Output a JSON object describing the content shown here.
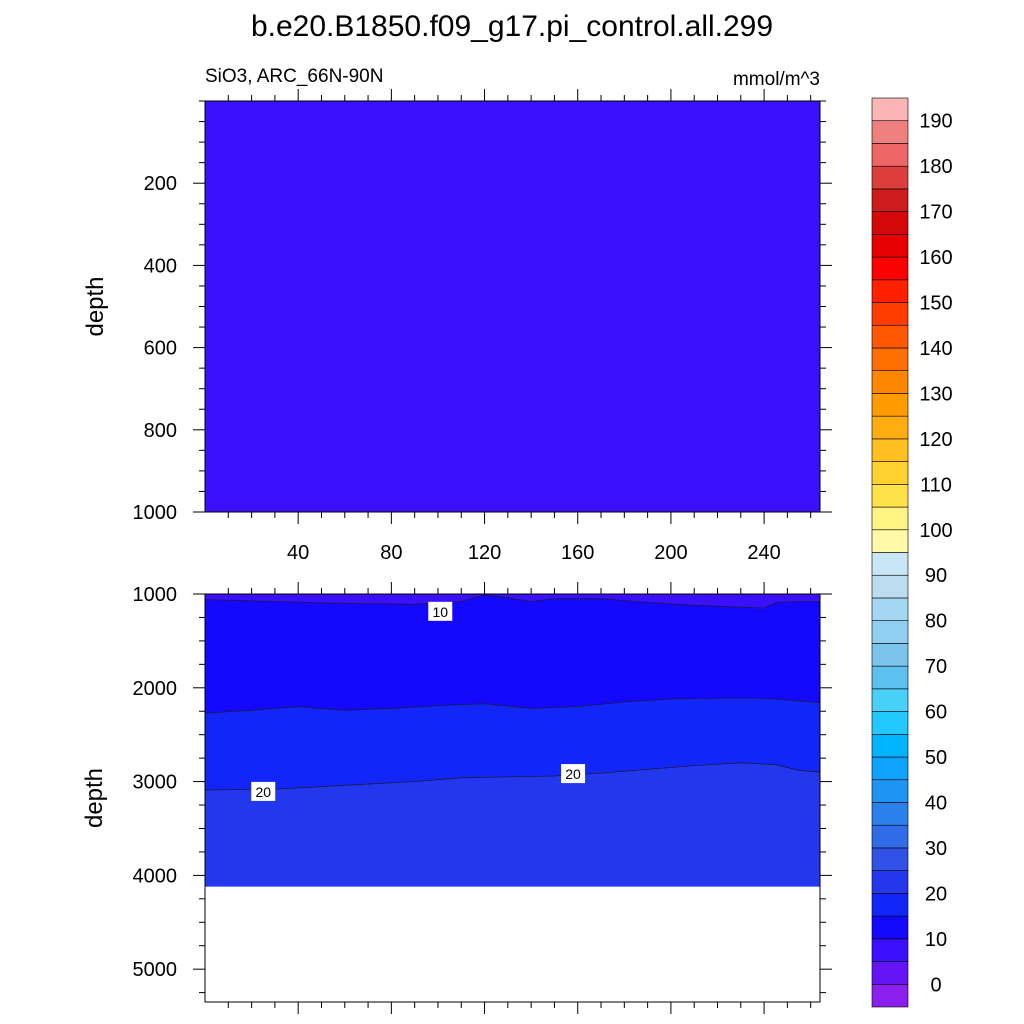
{
  "figure": {
    "title": "b.e20.B1850.f09_g17.pi_control.all.299",
    "subtitle_left": "SiO3, ARC_66N-90N",
    "subtitle_right": "mmol/m^3"
  },
  "chart_data": [
    {
      "type": "heatmap",
      "name": "upper panel",
      "xlabel": "",
      "ylabel": "depth",
      "xlim": [
        0,
        264
      ],
      "ylim": [
        1000,
        0
      ],
      "x_ticks": [
        40,
        80,
        120,
        160,
        200,
        240
      ],
      "y_ticks": [
        200,
        400,
        600,
        800,
        1000
      ],
      "bands": [
        {
          "level_range": [
            5,
            10
          ],
          "color": "#3a10ff",
          "top": [
            [
              0,
              0
            ],
            [
              264,
              0
            ]
          ],
          "bottom": [
            [
              0,
              1000
            ],
            [
              264,
              1000
            ]
          ]
        }
      ],
      "contours": [],
      "contour_labels": []
    },
    {
      "type": "heatmap",
      "name": "lower panel",
      "xlabel": "",
      "ylabel": "depth",
      "xlim": [
        0,
        264
      ],
      "ylim": [
        5350,
        1000
      ],
      "x_ticks": [
        40,
        80,
        120,
        160,
        200,
        240
      ],
      "y_ticks": [
        1000,
        2000,
        3000,
        4000,
        5000
      ],
      "bottom_depth": 4120,
      "bands": [
        {
          "level_range": [
            5,
            10
          ],
          "color": "#3a10ff",
          "top": [
            [
              0,
              1000
            ],
            [
              264,
              1000
            ]
          ],
          "bottom": [
            [
              0,
              1060
            ],
            [
              30,
              1080
            ],
            [
              60,
              1100
            ],
            [
              90,
              1110
            ],
            [
              110,
              1080
            ],
            [
              120,
              1010
            ],
            [
              130,
              1040
            ],
            [
              140,
              1080
            ],
            [
              150,
              1050
            ],
            [
              170,
              1050
            ],
            [
              190,
              1090
            ],
            [
              210,
              1120
            ],
            [
              230,
              1140
            ],
            [
              240,
              1150
            ],
            [
              245,
              1090
            ],
            [
              255,
              1080
            ],
            [
              264,
              1080
            ]
          ]
        },
        {
          "level_range": [
            10,
            15
          ],
          "color": "#1408ff",
          "top": [
            [
              0,
              1060
            ],
            [
              30,
              1080
            ],
            [
              60,
              1100
            ],
            [
              90,
              1110
            ],
            [
              110,
              1080
            ],
            [
              120,
              1010
            ],
            [
              130,
              1040
            ],
            [
              140,
              1080
            ],
            [
              150,
              1050
            ],
            [
              170,
              1050
            ],
            [
              190,
              1090
            ],
            [
              210,
              1120
            ],
            [
              230,
              1140
            ],
            [
              240,
              1150
            ],
            [
              245,
              1090
            ],
            [
              255,
              1080
            ],
            [
              264,
              1080
            ]
          ],
          "bottom": [
            [
              0,
              2270
            ],
            [
              20,
              2240
            ],
            [
              40,
              2200
            ],
            [
              60,
              2240
            ],
            [
              80,
              2220
            ],
            [
              100,
              2190
            ],
            [
              120,
              2170
            ],
            [
              140,
              2220
            ],
            [
              160,
              2200
            ],
            [
              180,
              2150
            ],
            [
              200,
              2120
            ],
            [
              220,
              2110
            ],
            [
              240,
              2110
            ],
            [
              255,
              2140
            ],
            [
              264,
              2160
            ]
          ]
        },
        {
          "level_range": [
            15,
            20
          ],
          "color": "#1326fa",
          "top": [
            [
              0,
              2270
            ],
            [
              20,
              2240
            ],
            [
              40,
              2200
            ],
            [
              60,
              2240
            ],
            [
              80,
              2220
            ],
            [
              100,
              2190
            ],
            [
              120,
              2170
            ],
            [
              140,
              2220
            ],
            [
              160,
              2200
            ],
            [
              180,
              2150
            ],
            [
              200,
              2120
            ],
            [
              220,
              2110
            ],
            [
              240,
              2110
            ],
            [
              255,
              2140
            ],
            [
              264,
              2160
            ]
          ],
          "bottom": [
            [
              0,
              3090
            ],
            [
              30,
              3080
            ],
            [
              60,
              3040
            ],
            [
              90,
              3000
            ],
            [
              110,
              2960
            ],
            [
              130,
              2950
            ],
            [
              150,
              2940
            ],
            [
              170,
              2910
            ],
            [
              190,
              2870
            ],
            [
              210,
              2830
            ],
            [
              230,
              2800
            ],
            [
              245,
              2820
            ],
            [
              255,
              2880
            ],
            [
              264,
              2900
            ]
          ]
        },
        {
          "level_range": [
            20,
            25
          ],
          "color": "#2338ee",
          "top": [
            [
              0,
              3090
            ],
            [
              30,
              3080
            ],
            [
              60,
              3040
            ],
            [
              90,
              3000
            ],
            [
              110,
              2960
            ],
            [
              130,
              2950
            ],
            [
              150,
              2940
            ],
            [
              170,
              2910
            ],
            [
              190,
              2870
            ],
            [
              210,
              2830
            ],
            [
              230,
              2800
            ],
            [
              245,
              2820
            ],
            [
              255,
              2880
            ],
            [
              264,
              2900
            ]
          ],
          "bottom": [
            [
              0,
              4120
            ],
            [
              264,
              4120
            ]
          ]
        }
      ],
      "contours": [
        {
          "level": 10,
          "points": [
            [
              0,
              1060
            ],
            [
              30,
              1080
            ],
            [
              60,
              1100
            ],
            [
              90,
              1110
            ],
            [
              110,
              1080
            ],
            [
              120,
              1010
            ],
            [
              130,
              1040
            ],
            [
              140,
              1080
            ],
            [
              150,
              1050
            ],
            [
              170,
              1050
            ],
            [
              190,
              1090
            ],
            [
              210,
              1120
            ],
            [
              230,
              1140
            ],
            [
              240,
              1150
            ],
            [
              245,
              1090
            ],
            [
              255,
              1080
            ],
            [
              264,
              1080
            ]
          ]
        },
        {
          "level": 15,
          "points": [
            [
              0,
              2270
            ],
            [
              20,
              2240
            ],
            [
              40,
              2200
            ],
            [
              60,
              2240
            ],
            [
              80,
              2220
            ],
            [
              100,
              2190
            ],
            [
              120,
              2170
            ],
            [
              140,
              2220
            ],
            [
              160,
              2200
            ],
            [
              180,
              2150
            ],
            [
              200,
              2120
            ],
            [
              220,
              2110
            ],
            [
              240,
              2110
            ],
            [
              255,
              2140
            ],
            [
              264,
              2160
            ]
          ]
        },
        {
          "level": 20,
          "points": [
            [
              0,
              3090
            ],
            [
              30,
              3080
            ],
            [
              60,
              3040
            ],
            [
              90,
              3000
            ],
            [
              110,
              2960
            ],
            [
              130,
              2950
            ],
            [
              150,
              2940
            ],
            [
              170,
              2910
            ],
            [
              190,
              2870
            ],
            [
              210,
              2830
            ],
            [
              230,
              2800
            ],
            [
              245,
              2820
            ],
            [
              255,
              2880
            ],
            [
              264,
              2900
            ]
          ]
        }
      ],
      "contour_labels": [
        {
          "text": "10",
          "x": 101,
          "y": 1190
        },
        {
          "text": "20",
          "x": 25,
          "y": 3110
        },
        {
          "text": "20",
          "x": 158,
          "y": 2920
        }
      ]
    }
  ],
  "colorbar": {
    "levels": [
      -5,
      0,
      5,
      10,
      15,
      20,
      25,
      30,
      35,
      40,
      45,
      50,
      55,
      60,
      65,
      70,
      75,
      80,
      85,
      90,
      95,
      100,
      105,
      110,
      115,
      120,
      125,
      130,
      135,
      140,
      145,
      150,
      155,
      160,
      165,
      170,
      175,
      180,
      185,
      190,
      195
    ],
    "colors": [
      "#8b20ee",
      "#6414f5",
      "#3a10ff",
      "#1408ff",
      "#1326fa",
      "#2338ee",
      "#3252e6",
      "#306be8",
      "#2a80ec",
      "#1f94f2",
      "#0ea3ff",
      "#00b4ff",
      "#22c8ff",
      "#48d0f8",
      "#5ec0ee",
      "#7cc4ee",
      "#90cff0",
      "#a4d8f2",
      "#bcdcf0",
      "#c8e6f6",
      "#fff9a8",
      "#fff383",
      "#ffe24a",
      "#ffd130",
      "#ffc020",
      "#ffad10",
      "#ff9a00",
      "#ff8600",
      "#ff6e00",
      "#ff5800",
      "#ff3c00",
      "#ff2000",
      "#ff0000",
      "#e80000",
      "#d40808",
      "#cc1c1c",
      "#dc3e3e",
      "#ee6666",
      "#f08080",
      "#fab4b4"
    ],
    "tick_labels": [
      "0",
      "10",
      "20",
      "30",
      "40",
      "50",
      "60",
      "70",
      "80",
      "90",
      "100",
      "110",
      "120",
      "130",
      "140",
      "150",
      "160",
      "170",
      "180",
      "190"
    ],
    "tick_values": [
      0,
      10,
      20,
      30,
      40,
      50,
      60,
      70,
      80,
      90,
      100,
      110,
      120,
      130,
      140,
      150,
      160,
      170,
      180,
      190
    ]
  }
}
